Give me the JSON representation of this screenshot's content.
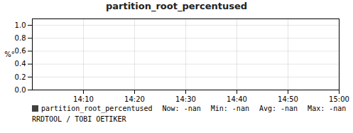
{
  "chart_data": {
    "type": "line",
    "title": "partition_root_percentused",
    "ylabel": "%°",
    "categories": [
      null,
      "14:10",
      "14:20",
      "14:30",
      "14:40",
      "14:50",
      "15:00"
    ],
    "series": [
      {
        "name": "partition_root_percentused",
        "color": "#404040",
        "values": [
          null,
          null,
          null,
          null,
          null,
          null,
          null
        ]
      }
    ],
    "ylim": [
      0.0,
      1.1
    ],
    "yticks": [
      {
        "value": 0.0,
        "label": "0.0"
      },
      0.2,
      0.4,
      0.6,
      0.8,
      {
        "value": 1.0,
        "label": "1.0"
      }
    ],
    "grid": true,
    "legend": "bottom",
    "annotations": [
      "Now: -nan",
      "Min: -nan",
      "Avg: -nan",
      "Max: -nan",
      "RRDTOOL / TOBI OETIKER"
    ]
  }
}
